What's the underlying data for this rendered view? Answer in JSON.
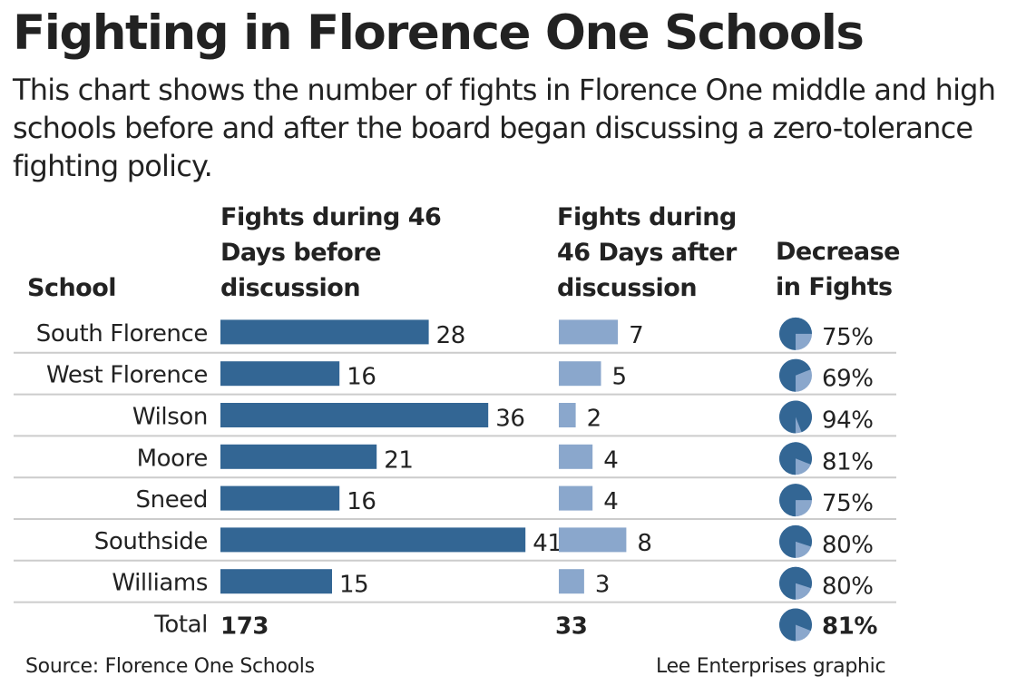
{
  "chart_data": {
    "type": "table",
    "title": "Fighting in Florence One Schools",
    "subtitle": "This chart shows the number of fights in Florence One middle and high schools before and after the board began discussing a zero-tolerance fighting policy.",
    "columns": {
      "school": "School",
      "before": "Fights during 46 Days before discussion",
      "after": "Fights during 46 Days after discussion",
      "decrease": "Decrease in Fights"
    },
    "rows": [
      {
        "school": "South Florence",
        "before": 28,
        "after": 7,
        "decrease_pct": 75,
        "decrease": "75%"
      },
      {
        "school": "West Florence",
        "before": 16,
        "after": 5,
        "decrease_pct": 69,
        "decrease": "69%"
      },
      {
        "school": "Wilson",
        "before": 36,
        "after": 2,
        "decrease_pct": 94,
        "decrease": "94%"
      },
      {
        "school": "Moore",
        "before": 21,
        "after": 4,
        "decrease_pct": 81,
        "decrease": "81%"
      },
      {
        "school": "Sneed",
        "before": 16,
        "after": 4,
        "decrease_pct": 75,
        "decrease": "75%"
      },
      {
        "school": "Southside",
        "before": 41,
        "after": 8,
        "decrease_pct": 80,
        "decrease": "80%"
      },
      {
        "school": "Williams",
        "before": 15,
        "after": 3,
        "decrease_pct": 80,
        "decrease": "80%"
      }
    ],
    "total": {
      "label": "Total",
      "before": "173",
      "after": "33",
      "decrease_pct": 81,
      "decrease": "81%"
    },
    "colors": {
      "before": "#336694",
      "after": "#8aa7cc",
      "pie_dark": "#336694",
      "pie_light": "#8aa7cc",
      "rule": "#cccccc"
    }
  },
  "footer": {
    "source": "Source: Florence One Schools",
    "credit": "Lee Enterprises graphic"
  }
}
